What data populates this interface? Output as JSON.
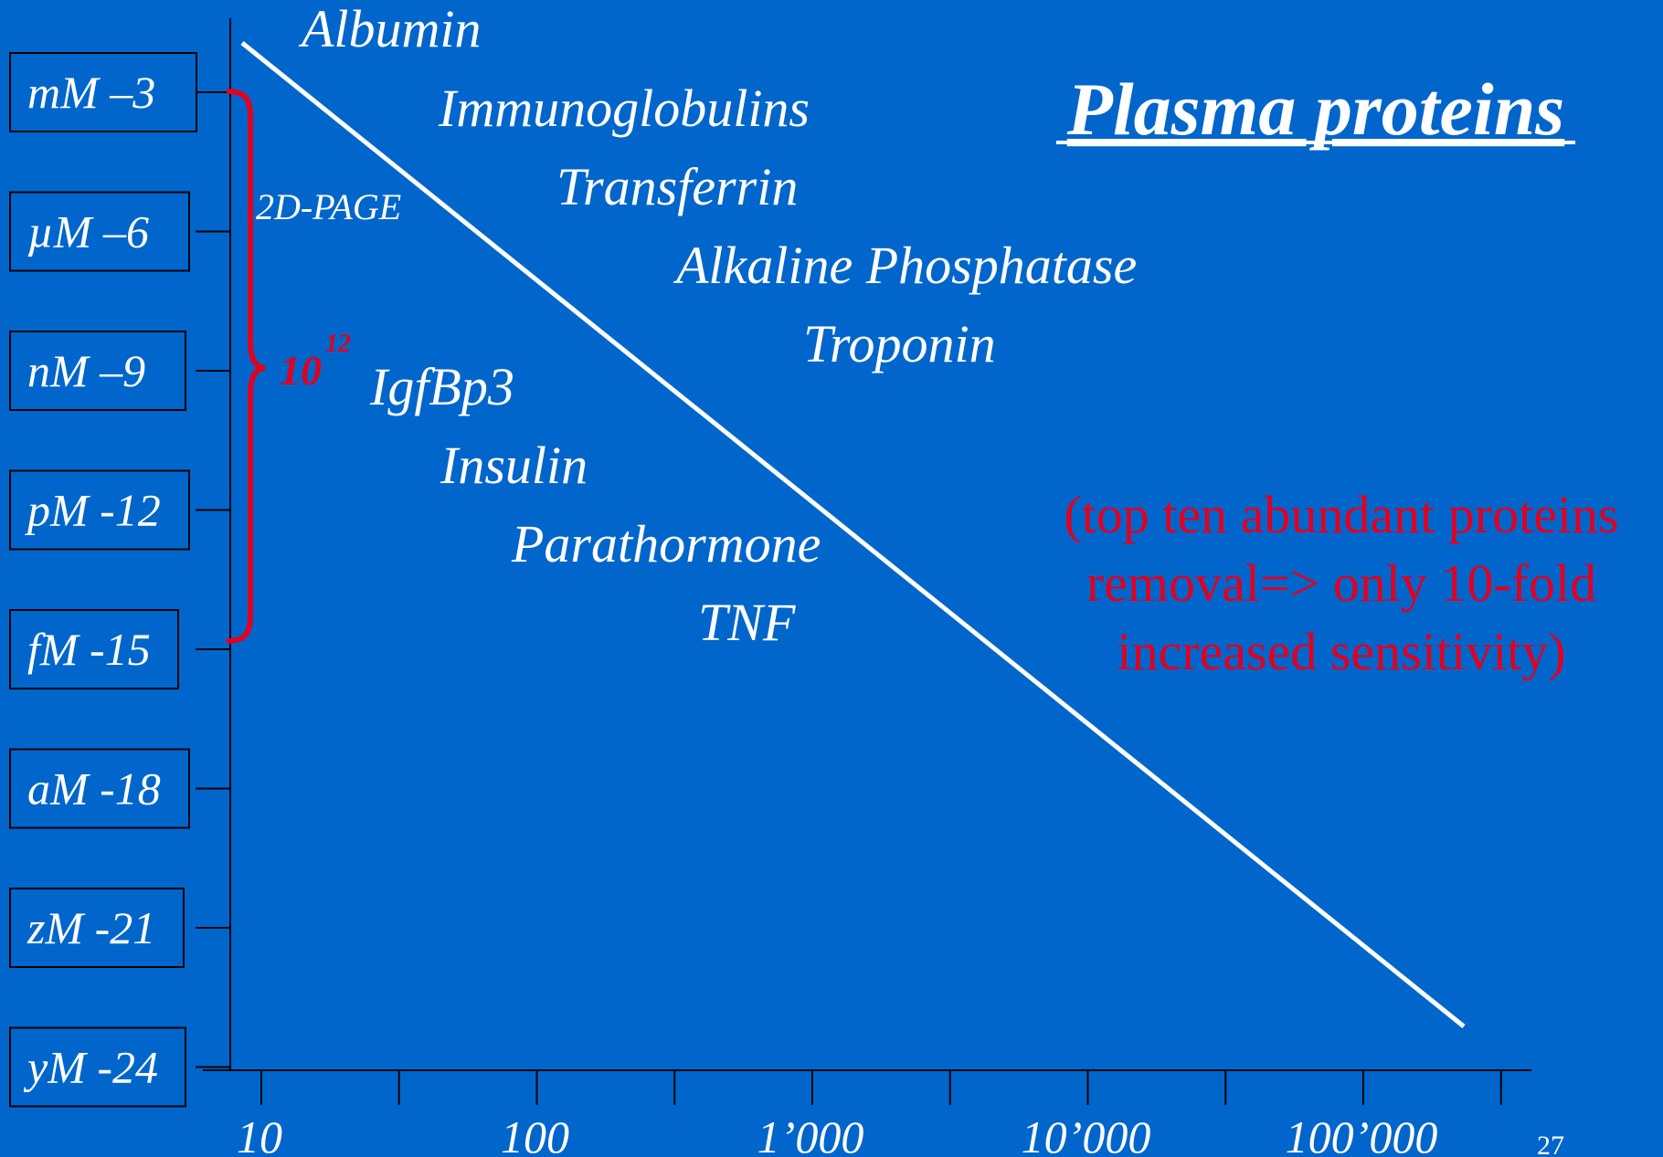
{
  "slide": {
    "title": "Plasma proteins",
    "slide_number": "27",
    "background_color": "#0066cc",
    "text_color": "#ffffff",
    "highlight_color": "#e00020"
  },
  "y_axis": {
    "labels": [
      "mM –3",
      "µM –6",
      "nM –9",
      "pM -12",
      "fM -15",
      "aM -18",
      "zM -21",
      "yM -24"
    ],
    "exponents": [
      -3,
      -6,
      -9,
      -12,
      -15,
      -18,
      -21,
      -24
    ]
  },
  "x_axis": {
    "labels": [
      "10",
      "100",
      "1’000",
      "10’000",
      "100’000"
    ],
    "values": [
      10,
      100,
      1000,
      10000,
      100000
    ],
    "scale": "log"
  },
  "proteins": [
    {
      "name": "Albumin"
    },
    {
      "name": "Immunoglobulins"
    },
    {
      "name": "Transferrin"
    },
    {
      "name": "Alkaline Phosphatase"
    },
    {
      "name": "Troponin"
    },
    {
      "name": "IgfBp3"
    },
    {
      "name": "Insulin"
    },
    {
      "name": "Parathormone"
    },
    {
      "name": "TNF"
    }
  ],
  "range_bracket": {
    "method_label": "2D-PAGE",
    "span_base": "10",
    "span_exponent": "12",
    "from_exponent": -3,
    "to_exponent": -15
  },
  "note": {
    "lines": [
      "(top ten abundant proteins",
      "removal=> only 10-fold",
      "increased sensitivity)"
    ]
  }
}
